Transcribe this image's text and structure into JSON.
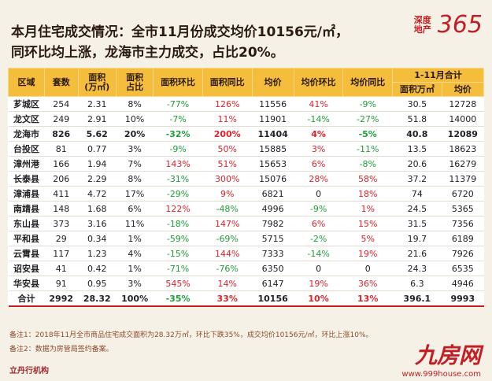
{
  "header": {
    "title_line1": "本月住宅成交情况：全市11月份成交均价10156元/㎡，",
    "title_line2": "同环比均上涨，龙海市主力成交，占比20%。",
    "logo_text": "深度地产",
    "logo_number": "365"
  },
  "table": {
    "columns": [
      "区域",
      "套数",
      "面积\n(万㎡)",
      "面积\n占比",
      "面积环比",
      "面积同比",
      "均价",
      "均价环比",
      "均价同比"
    ],
    "group_header": "1-11月合计",
    "group_columns": [
      "面积万㎡",
      "均价"
    ],
    "rows": [
      [
        "芗城区",
        "254",
        "2.31",
        "8%",
        "-77%",
        "126%",
        "11556",
        "41%",
        "-9%",
        "30.5",
        "12728"
      ],
      [
        "龙文区",
        "249",
        "2.91",
        "10%",
        "-7%",
        "11%",
        "11901",
        "-14%",
        "-27%",
        "51.8",
        "14000"
      ],
      [
        "龙海市",
        "826",
        "5.62",
        "20%",
        "-32%",
        "200%",
        "11404",
        "4%",
        "-5%",
        "40.8",
        "12089"
      ],
      [
        "台投区",
        "81",
        "0.77",
        "3%",
        "-9%",
        "50%",
        "15885",
        "3%",
        "-11%",
        "13.5",
        "18623"
      ],
      [
        "漳州港",
        "166",
        "1.94",
        "7%",
        "143%",
        "51%",
        "15653",
        "6%",
        "-8%",
        "20.6",
        "16279"
      ],
      [
        "长泰县",
        "206",
        "2.29",
        "8%",
        "-31%",
        "300%",
        "15076",
        "28%",
        "58%",
        "37.2",
        "11379"
      ],
      [
        "漳浦县",
        "411",
        "4.72",
        "17%",
        "-29%",
        "9%",
        "6821",
        "0",
        "18%",
        "74",
        "6720"
      ],
      [
        "南靖县",
        "148",
        "1.68",
        "6%",
        "122%",
        "-48%",
        "4996",
        "-9%",
        "1%",
        "24.5",
        "5365"
      ],
      [
        "东山县",
        "373",
        "3.16",
        "11%",
        "-18%",
        "147%",
        "7982",
        "6%",
        "15%",
        "31.5",
        "7356"
      ],
      [
        "平和县",
        "29",
        "0.34",
        "1%",
        "-59%",
        "-69%",
        "5715",
        "-2%",
        "5%",
        "19.7",
        "6189"
      ],
      [
        "云霄县",
        "117",
        "1.23",
        "4%",
        "-15%",
        "144%",
        "7333",
        "-14%",
        "19%",
        "21.6",
        "7926"
      ],
      [
        "诏安县",
        "41",
        "0.42",
        "1%",
        "-71%",
        "-76%",
        "6350",
        "0",
        "0",
        "24.3",
        "6535"
      ],
      [
        "华安县",
        "91",
        "0.95",
        "3%",
        "545%",
        "14%",
        "6147",
        "19%",
        "36%",
        "6.3",
        "4946"
      ]
    ],
    "total": [
      "合计",
      "2992",
      "28.32",
      "100%",
      "-35%",
      "33%",
      "10156",
      "10%",
      "13%",
      "396.1",
      "9993"
    ]
  },
  "notes": [
    "备注1：2018年11月全市商品住宅成交面积为28.32万㎡，环比下跌35%，成交均价10156元/㎡，环比上涨10%。",
    "备注2：数据为房管局签约备案。"
  ],
  "footer": {
    "brand": "立丹行机构",
    "watermark": "九房网",
    "watermark_url": "www.999house.com"
  }
}
